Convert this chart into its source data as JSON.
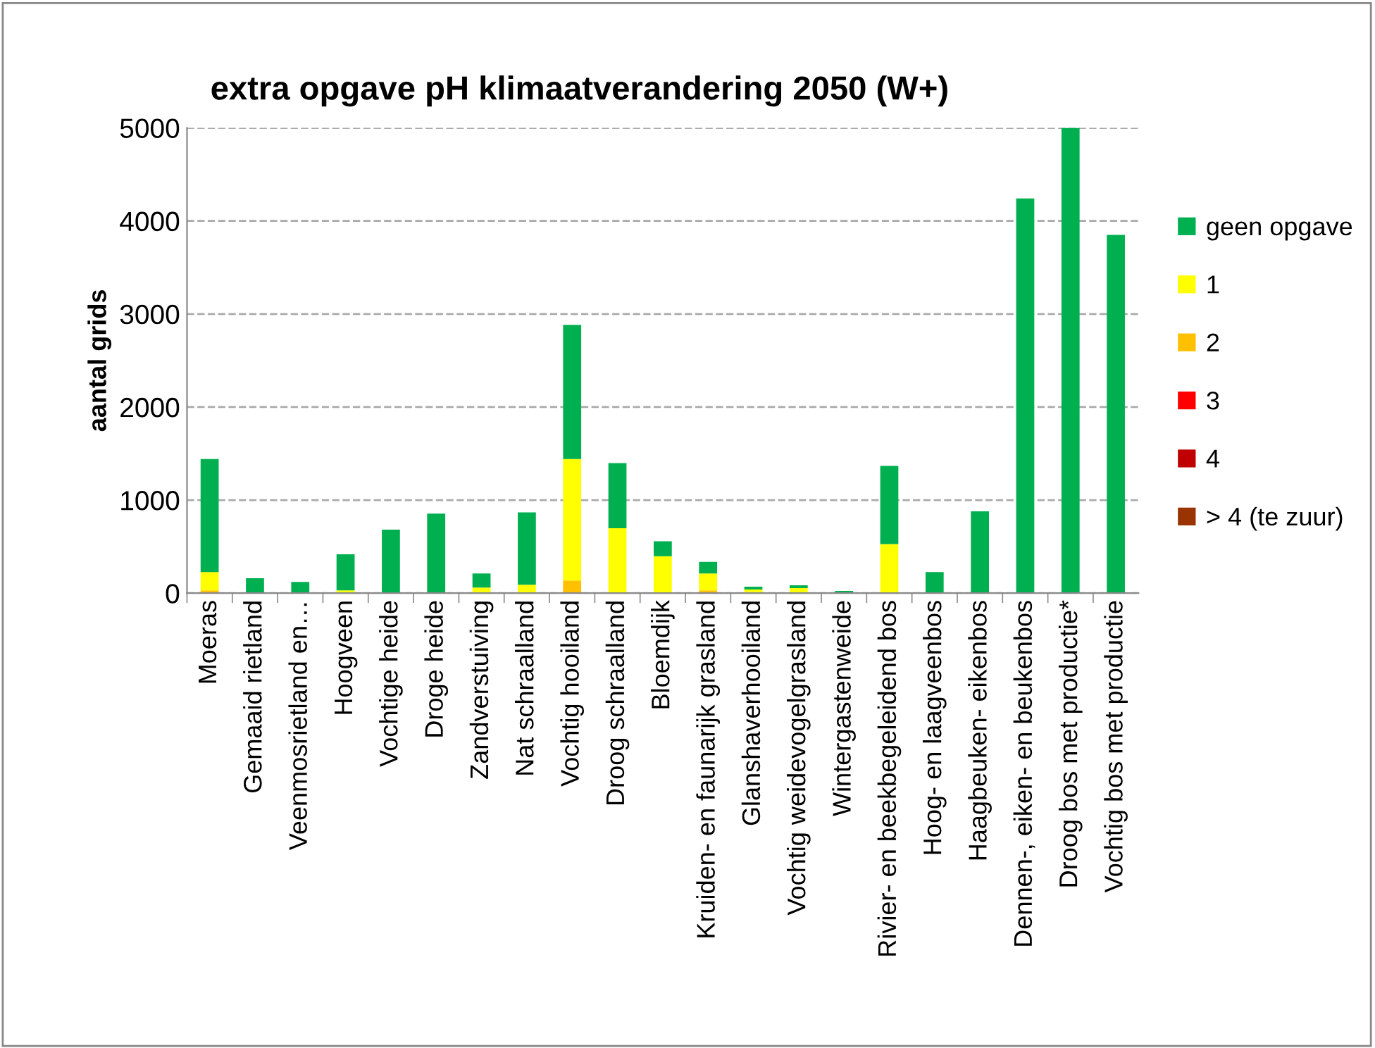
{
  "chart_data": {
    "type": "bar",
    "stacked": true,
    "title": "extra opgave pH klimaatverandering 2050 (W+)",
    "ylabel": "aantal grids",
    "categories": [
      "Moeras",
      "Gemaaid rietland",
      "Veenmosrietland en…",
      "Hoogveen",
      "Vochtige heide",
      "Droge heide",
      "Zandverstuiving",
      "Nat schraalland",
      "Vochtig hooiland",
      "Droog schraalland",
      "Bloemdijk",
      "Kruiden- en faunarijk grasland",
      "Glanshaverhooiland",
      "Vochtig weidevogelgrasland",
      "Wintergastenweide",
      "Rivier- en beekbegeleidend bos",
      "Hoog- en laagveenbos",
      "Haagbeuken- eikenbos",
      "Dennen-, eiken- en beukenbos",
      "Droog bos met productie*",
      "Vochtig bos met productie"
    ],
    "series": [
      {
        "name": "> 4 (te zuur)",
        "color": "#993300",
        "values": [
          0,
          0,
          0,
          0,
          0,
          0,
          0,
          0,
          0,
          0,
          0,
          0,
          0,
          0,
          0,
          0,
          0,
          0,
          0,
          0,
          0
        ]
      },
      {
        "name": "4",
        "color": "#c00000",
        "values": [
          0,
          0,
          0,
          0,
          0,
          0,
          0,
          0,
          0,
          0,
          0,
          0,
          0,
          0,
          0,
          0,
          0,
          0,
          0,
          0,
          0
        ]
      },
      {
        "name": "3",
        "color": "#ff0000",
        "values": [
          0,
          0,
          0,
          0,
          0,
          0,
          0,
          0,
          0,
          0,
          0,
          0,
          0,
          0,
          0,
          0,
          0,
          0,
          0,
          0,
          0
        ]
      },
      {
        "name": "2",
        "color": "#ffc000",
        "values": [
          30,
          0,
          0,
          0,
          0,
          0,
          0,
          0,
          136,
          0,
          0,
          30,
          0,
          0,
          0,
          0,
          0,
          0,
          0,
          0,
          0
        ]
      },
      {
        "name": "1",
        "color": "#ffff00",
        "values": [
          196,
          0,
          0,
          30,
          0,
          0,
          60,
          90,
          1306,
          698,
          397,
          181,
          40,
          55,
          0,
          528,
          0,
          0,
          0,
          0,
          0
        ]
      },
      {
        "name": "geen opgave",
        "color": "#00b050",
        "values": [
          1216,
          161,
          121,
          387,
          683,
          854,
          151,
          779,
          1442,
          699,
          161,
          126,
          30,
          30,
          25,
          839,
          226,
          879,
          4241,
          5000,
          3849
        ]
      }
    ],
    "ylim": [
      0,
      5000
    ],
    "yticks": [
      0,
      1000,
      2000,
      3000,
      4000,
      5000
    ],
    "grid": "y",
    "legend": "right"
  }
}
